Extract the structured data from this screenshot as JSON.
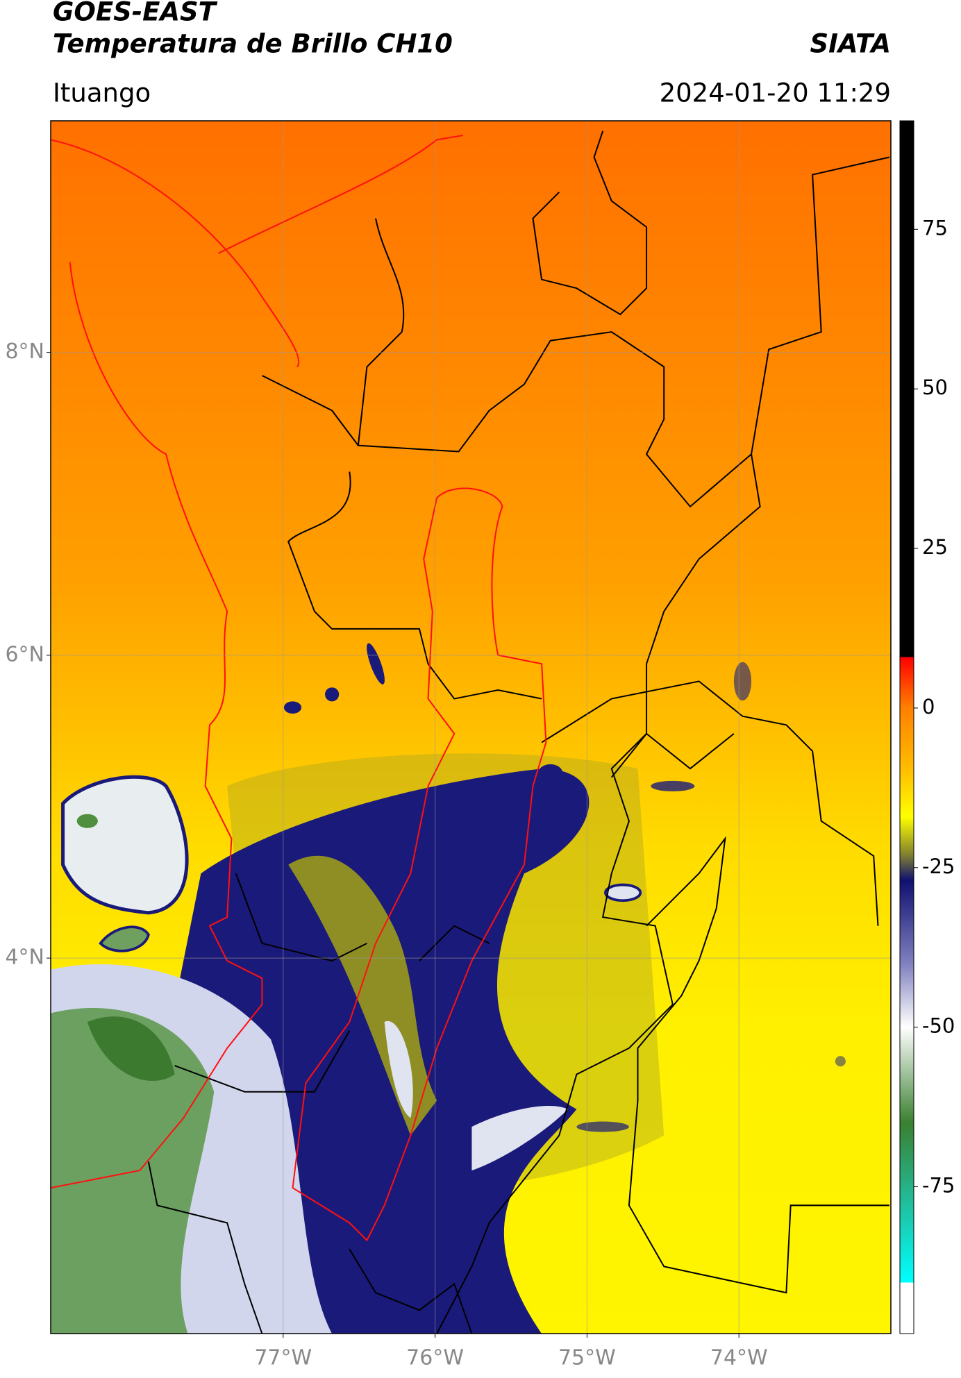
{
  "chart_data": {
    "type": "map",
    "title": "GOES-EAST",
    "subtitle": "Temperatura de Brillo CH10",
    "source": "SIATA",
    "region": "Ituango",
    "timestamp": "2024-01-20 11:29",
    "xlim": [
      -78.53,
      -73.0
    ],
    "ylim": [
      1.52,
      9.53
    ],
    "xticks": [
      {
        "value": -77,
        "label": "77°W"
      },
      {
        "value": -76,
        "label": "76°W"
      },
      {
        "value": -75,
        "label": "75°W"
      },
      {
        "value": -74,
        "label": "74°W"
      }
    ],
    "yticks": [
      {
        "value": 8,
        "label": "8°N"
      },
      {
        "value": 6,
        "label": "6°N"
      },
      {
        "value": 4,
        "label": "4°N"
      }
    ],
    "grid": true,
    "clim": [
      -98,
      92
    ],
    "cticks": [
      75,
      50,
      25,
      0,
      -25,
      -50,
      -75
    ],
    "colormap": [
      {
        "value": 92,
        "color": "#000000"
      },
      {
        "value": 8,
        "color": "#000000"
      },
      {
        "value": 8,
        "color": "#ff0000"
      },
      {
        "value": 5,
        "color": "#ff3000"
      },
      {
        "value": 0,
        "color": "#ff8000"
      },
      {
        "value": -10,
        "color": "#ffc000"
      },
      {
        "value": -17,
        "color": "#ffff00"
      },
      {
        "value": -23,
        "color": "#808030"
      },
      {
        "value": -27,
        "color": "#101070"
      },
      {
        "value": -40,
        "color": "#8080c0"
      },
      {
        "value": -50,
        "color": "#ffffff"
      },
      {
        "value": -65,
        "color": "#3a8030"
      },
      {
        "value": -78,
        "color": "#20c0a0"
      },
      {
        "value": -90,
        "color": "#00ffff"
      },
      {
        "value": -90,
        "color": "#ffffff"
      },
      {
        "value": -98,
        "color": "#ffffff"
      }
    ]
  }
}
